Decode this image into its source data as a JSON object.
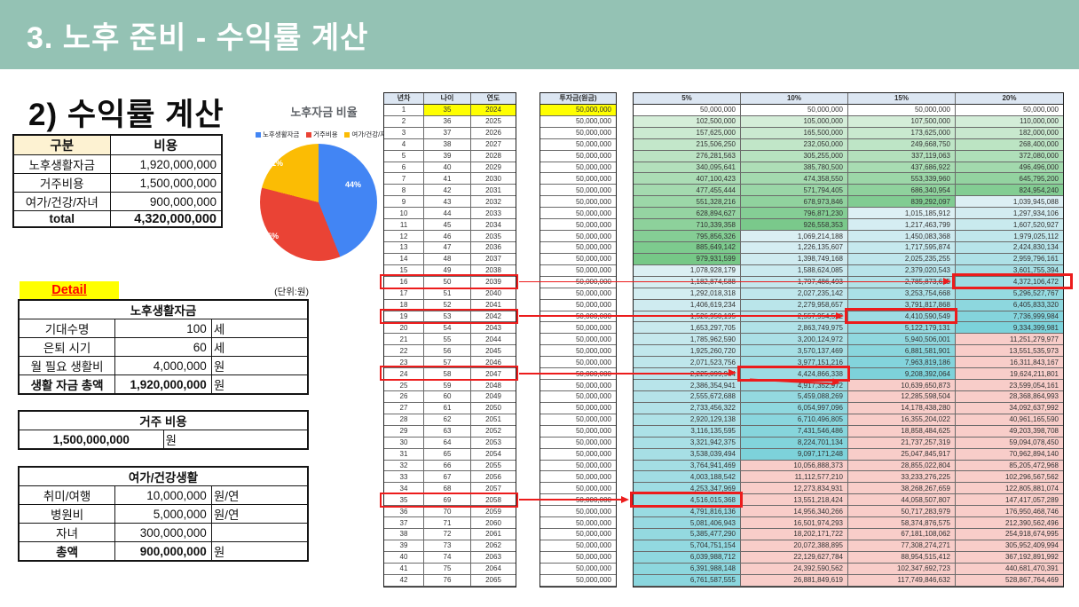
{
  "slide": {
    "title": "3. 노후 준비 - 수익률 계산"
  },
  "left": {
    "heading": "2) 수익률 계산",
    "cost_table": {
      "headers": [
        "구분",
        "비용"
      ],
      "rows": [
        [
          "노후생활자금",
          "1,920,000,000"
        ],
        [
          "거주비용",
          "1,500,000,000"
        ],
        [
          "여가/건강/자녀",
          "900,000,000"
        ]
      ],
      "total_label": "total",
      "total_value": "4,320,000,000"
    },
    "detail_label": "Detail",
    "unit_note": "(단위:원)",
    "life_table": {
      "title": "노후생활자금",
      "rows": [
        [
          "기대수명",
          "100",
          "세"
        ],
        [
          "은퇴 시기",
          "60",
          "세"
        ],
        [
          "월 필요 생활비",
          "4,000,000",
          "원"
        ],
        [
          "생활 자금 총액",
          "1,920,000,000",
          "원"
        ]
      ]
    },
    "housing_table": {
      "title": "거주 비용",
      "value": "1,500,000,000",
      "unit": "원"
    },
    "leisure_table": {
      "title": "여가/건강생활",
      "rows": [
        [
          "취미/여행",
          "10,000,000",
          "원/연"
        ],
        [
          "병원비",
          "5,000,000",
          "원/연"
        ],
        [
          "자녀",
          "300,000,000",
          ""
        ],
        [
          "총액",
          "900,000,000",
          "원"
        ]
      ]
    }
  },
  "pie": {
    "title": "노후자금 비율",
    "slices": [
      {
        "label": "노후생활자금",
        "pct": 44,
        "pct_label": "44%",
        "color": "#4285f4"
      },
      {
        "label": "거주비용",
        "pct": 35,
        "pct_label": "35%",
        "color": "#ea4335"
      },
      {
        "label": "여가/건강/자녀",
        "pct": 21,
        "pct_label": "21%",
        "color": "#fbbc04"
      }
    ]
  },
  "chart_data": {
    "type": "pie",
    "title": "노후자금 비율",
    "categories": [
      "노후생활자금",
      "거주비용",
      "여가/건강/자녀"
    ],
    "values": [
      44,
      35,
      21
    ],
    "colors": [
      "#4285f4",
      "#ea4335",
      "#fbbc04"
    ],
    "legend_position": "top"
  },
  "grid": {
    "headers": [
      "년차",
      "나이",
      "연도",
      "투자금(원금)",
      "5%",
      "10%",
      "15%",
      "20%"
    ],
    "rows": [
      [
        1,
        35,
        2024,
        50000000,
        50000000,
        50000000,
        50000000,
        50000000
      ],
      [
        2,
        36,
        2025,
        50000000,
        102500000,
        105000000,
        107500000,
        110000000
      ],
      [
        3,
        37,
        2026,
        50000000,
        157625000,
        165500000,
        173625000,
        182000000
      ],
      [
        4,
        38,
        2027,
        50000000,
        215506250,
        232050000,
        249668750,
        268400000
      ],
      [
        5,
        39,
        2028,
        50000000,
        276281563,
        305255000,
        337119063,
        372080000
      ],
      [
        6,
        40,
        2029,
        50000000,
        340095641,
        385780500,
        437686922,
        496496000
      ],
      [
        7,
        41,
        2030,
        50000000,
        407100423,
        474358550,
        553339960,
        645795200
      ],
      [
        8,
        42,
        2031,
        50000000,
        477455444,
        571794405,
        686340954,
        824954240
      ],
      [
        9,
        43,
        2032,
        50000000,
        551328216,
        678973846,
        839292097,
        1039945088
      ],
      [
        10,
        44,
        2033,
        50000000,
        628894627,
        796871230,
        1015185912,
        1297934106
      ],
      [
        11,
        45,
        2034,
        50000000,
        710339358,
        926558353,
        1217463799,
        1607520927
      ],
      [
        12,
        46,
        2035,
        50000000,
        795856326,
        1069214188,
        1450083368,
        1979025112
      ],
      [
        13,
        47,
        2036,
        50000000,
        885649142,
        1226135607,
        1717595874,
        2424830134
      ],
      [
        14,
        48,
        2037,
        50000000,
        979931599,
        1398749168,
        2025235255,
        2959796161
      ],
      [
        15,
        49,
        2038,
        50000000,
        1078928179,
        1588624085,
        2379020543,
        3601755394
      ],
      [
        16,
        50,
        2039,
        50000000,
        1182874588,
        1797486493,
        2785873625,
        4372106472
      ],
      [
        17,
        51,
        2040,
        50000000,
        1292018318,
        2027235142,
        3253754668,
        5296527767
      ],
      [
        18,
        52,
        2041,
        50000000,
        1406619234,
        2279958657,
        3791817868,
        6405833320
      ],
      [
        19,
        53,
        2042,
        50000000,
        1526950195,
        2557954522,
        4410590549,
        7736999984
      ],
      [
        20,
        54,
        2043,
        50000000,
        1653297705,
        2863749975,
        5122179131,
        9334399981
      ],
      [
        21,
        55,
        2044,
        50000000,
        1785962590,
        3200124972,
        5940506001,
        11251279977
      ],
      [
        22,
        56,
        2045,
        50000000,
        1925260720,
        3570137469,
        6881581901,
        13551535973
      ],
      [
        23,
        57,
        2046,
        50000000,
        2071523756,
        3977151216,
        7963819186,
        16311843167
      ],
      [
        24,
        58,
        2047,
        50000000,
        2225099944,
        4424866338,
        9208392064,
        19624211801
      ],
      [
        25,
        59,
        2048,
        50000000,
        2386354941,
        4917352972,
        10639650873,
        23599054161
      ],
      [
        26,
        60,
        2049,
        50000000,
        2555672688,
        5459088269,
        12285598504,
        28368864993
      ],
      [
        27,
        61,
        2050,
        50000000,
        2733456322,
        6054997096,
        14178438280,
        34092637992
      ],
      [
        28,
        62,
        2051,
        50000000,
        2920129138,
        6710496805,
        16355204022,
        40961165590
      ],
      [
        29,
        63,
        2052,
        50000000,
        3116135595,
        7431546486,
        18858484625,
        49203398708
      ],
      [
        30,
        64,
        2053,
        50000000,
        3321942375,
        8224701134,
        21737257319,
        59094078450
      ],
      [
        31,
        65,
        2054,
        50000000,
        3538039494,
        9097171248,
        25047845917,
        70962894140
      ],
      [
        32,
        66,
        2055,
        50000000,
        3764941469,
        10056888373,
        28855022804,
        85205472968
      ],
      [
        33,
        67,
        2056,
        50000000,
        4003188542,
        11112577210,
        33233276225,
        102296567562
      ],
      [
        34,
        68,
        2057,
        50000000,
        4253347969,
        12273834931,
        38268267659,
        122805881074
      ],
      [
        35,
        69,
        2058,
        50000000,
        4516015368,
        13551218424,
        44058507807,
        147417057289
      ],
      [
        36,
        70,
        2059,
        50000000,
        4791816136,
        14956340266,
        50717283979,
        176950468746
      ],
      [
        37,
        71,
        2060,
        50000000,
        5081406943,
        16501974293,
        58374876575,
        212390562496
      ],
      [
        38,
        72,
        2061,
        50000000,
        5385477290,
        18202171722,
        67181108062,
        254918674995
      ],
      [
        39,
        73,
        2062,
        50000000,
        5704751154,
        20072388895,
        77308274271,
        305952409994
      ],
      [
        40,
        74,
        2063,
        50000000,
        6039988712,
        22129627784,
        88954515412,
        367192891992
      ],
      [
        41,
        75,
        2064,
        50000000,
        6391988148,
        24392590562,
        102347692723,
        440681470391
      ],
      [
        42,
        76,
        2065,
        50000000,
        6761587555,
        26881849619,
        117749846632,
        528867764469
      ]
    ],
    "annotations": [
      {
        "row": 16,
        "target_rate": "20%"
      },
      {
        "row": 19,
        "target_rate": "15%"
      },
      {
        "row": 24,
        "target_rate": "10%",
        "extra_arrow": true
      },
      {
        "row": 35,
        "target_rate": "5%"
      }
    ]
  },
  "colors": {
    "band": "#94c2b4",
    "thead": "#dce6f2",
    "yellow": "#ffff00",
    "cream": "#fdf2d2",
    "detail_red": "#ff0000",
    "annotation_red": "#ec1c1c",
    "green_low": "#f1f9f1",
    "green_high": "#74c786",
    "teal_low": "#def0f4",
    "teal_high": "#79d1d9",
    "pink": "#f8cdc9"
  }
}
